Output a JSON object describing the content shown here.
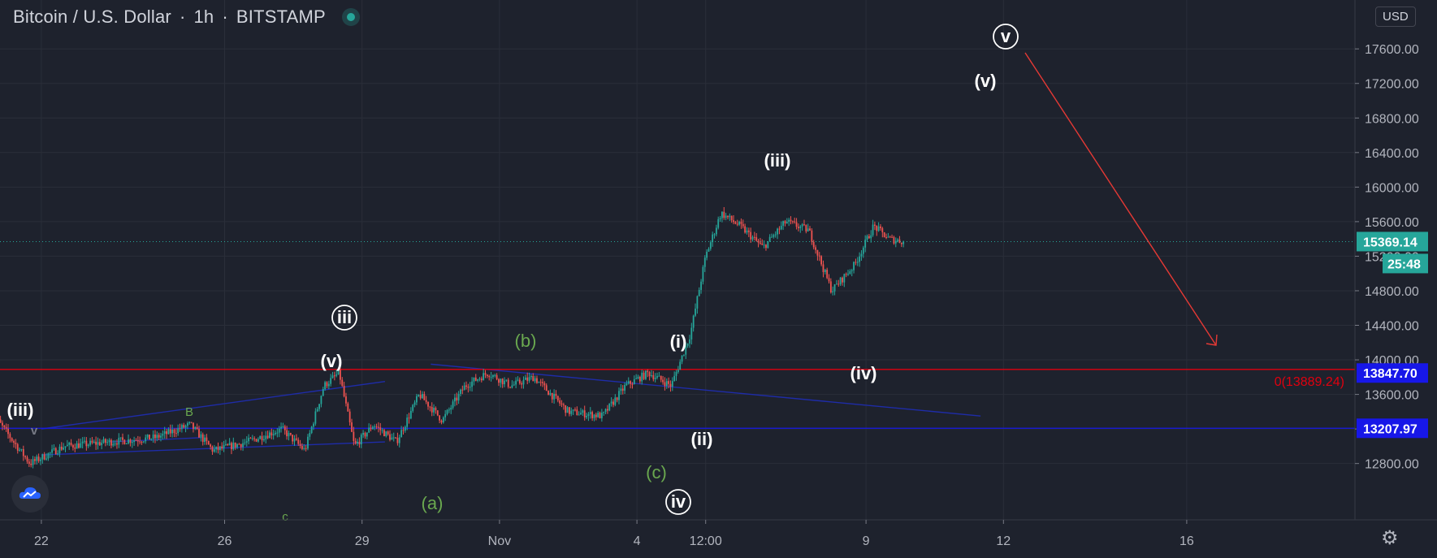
{
  "header": {
    "symbol_name": "Bitcoin / U.S. Dollar",
    "interval": "1h",
    "exchange": "BITSTAMP",
    "separator": "·"
  },
  "currency_label": "USD",
  "status_icon": "market-open-dot-icon",
  "settings_icon": "gear-icon",
  "logo_icon": "cloud-logo-icon",
  "colors": {
    "background": "#1e222d",
    "up": "#26a69a",
    "down": "#ef5350",
    "hline": "#e0000f",
    "channel": "#1e2ca8",
    "price_badge": "#26a69a",
    "level_badge": "#1717e8",
    "green_label": "#6aa84f"
  },
  "chart_data": {
    "type": "candlestick",
    "title": "Bitcoin / U.S. Dollar",
    "ylim": [
      12400,
      17600
    ],
    "y_ticks": [
      "12800.00",
      "13200.00",
      "13600.00",
      "14000.00",
      "14400.00",
      "14800.00",
      "15200.00",
      "15600.00",
      "16000.00",
      "16400.00",
      "16800.00",
      "17200.00",
      "17600.00"
    ],
    "x_ticks": [
      "22",
      "26",
      "29",
      "Nov",
      "4",
      "12:00",
      "9",
      "12",
      "16"
    ],
    "current_price": "15369.14",
    "countdown": "25:48",
    "levels": [
      {
        "value": 13847.7,
        "label": "13847.70"
      },
      {
        "value": 13207.97,
        "label": "13207.97"
      }
    ],
    "fib_label": "0(13889.24)",
    "fib_value": 13889.24,
    "anchors": [
      {
        "date": "Oct 21",
        "close": 13400
      },
      {
        "date": "Oct 21",
        "close": 12800
      },
      {
        "date": "Oct 22",
        "close": 13000
      },
      {
        "date": "Oct 23",
        "close": 13050
      },
      {
        "date": "Oct 24",
        "close": 13100
      },
      {
        "date": "Oct 25",
        "close": 13250
      },
      {
        "date": "Oct 25",
        "close": 12950
      },
      {
        "date": "Oct 26",
        "close": 13050
      },
      {
        "date": "Oct 27",
        "close": 13200
      },
      {
        "date": "Oct 27",
        "close": 12950
      },
      {
        "date": "Oct 28",
        "close": 13700
      },
      {
        "date": "Oct 28",
        "close": 13850
      },
      {
        "date": "Oct 28",
        "close": 13000
      },
      {
        "date": "Oct 29",
        "close": 13250
      },
      {
        "date": "Oct 29",
        "close": 13050
      },
      {
        "date": "Oct 30",
        "close": 13600
      },
      {
        "date": "Oct 30",
        "close": 13300
      },
      {
        "date": "Oct 31",
        "close": 13700
      },
      {
        "date": "Oct 31",
        "close": 13850
      },
      {
        "date": "Nov 1",
        "close": 13700
      },
      {
        "date": "Nov 1",
        "close": 13800
      },
      {
        "date": "Nov 2",
        "close": 13400
      },
      {
        "date": "Nov 3",
        "close": 13350
      },
      {
        "date": "Nov 3",
        "close": 13700
      },
      {
        "date": "Nov 4",
        "close": 13850
      },
      {
        "date": "Nov 4",
        "close": 13700
      },
      {
        "date": "Nov 5",
        "close": 14300
      },
      {
        "date": "Nov 5",
        "close": 15200
      },
      {
        "date": "Nov 5",
        "close": 15700
      },
      {
        "date": "Nov 6",
        "close": 15550
      },
      {
        "date": "Nov 6",
        "close": 15300
      },
      {
        "date": "Nov 7",
        "close": 15600
      },
      {
        "date": "Nov 7",
        "close": 15500
      },
      {
        "date": "Nov 8",
        "close": 14800
      },
      {
        "date": "Nov 8",
        "close": 15100
      },
      {
        "date": "Nov 9",
        "close": 15550
      },
      {
        "date": "Nov 9",
        "close": 15400
      },
      {
        "date": "Nov 9",
        "close": 15370
      }
    ],
    "annotations": [
      {
        "text": "(iii)",
        "color": "white",
        "circled": false
      },
      {
        "text": "v",
        "color": "gray",
        "circled": false
      },
      {
        "text": "B",
        "color": "green",
        "circled": false
      },
      {
        "text": "c",
        "color": "green",
        "circled": false
      },
      {
        "text": "iii",
        "color": "white",
        "circled": true
      },
      {
        "text": "(v)",
        "color": "white",
        "circled": false
      },
      {
        "text": "(a)",
        "color": "green",
        "circled": false
      },
      {
        "text": "(b)",
        "color": "green",
        "circled": false
      },
      {
        "text": "(c)",
        "color": "green",
        "circled": false
      },
      {
        "text": "iv",
        "color": "white",
        "circled": true
      },
      {
        "text": "(i)",
        "color": "white",
        "circled": false
      },
      {
        "text": "(ii)",
        "color": "white",
        "circled": false
      },
      {
        "text": "(iii)",
        "color": "white",
        "circled": false
      },
      {
        "text": "(iv)",
        "color": "white",
        "circled": false
      },
      {
        "text": "(v)",
        "color": "white",
        "circled": false
      },
      {
        "text": "v",
        "color": "white",
        "circled": true
      }
    ]
  }
}
